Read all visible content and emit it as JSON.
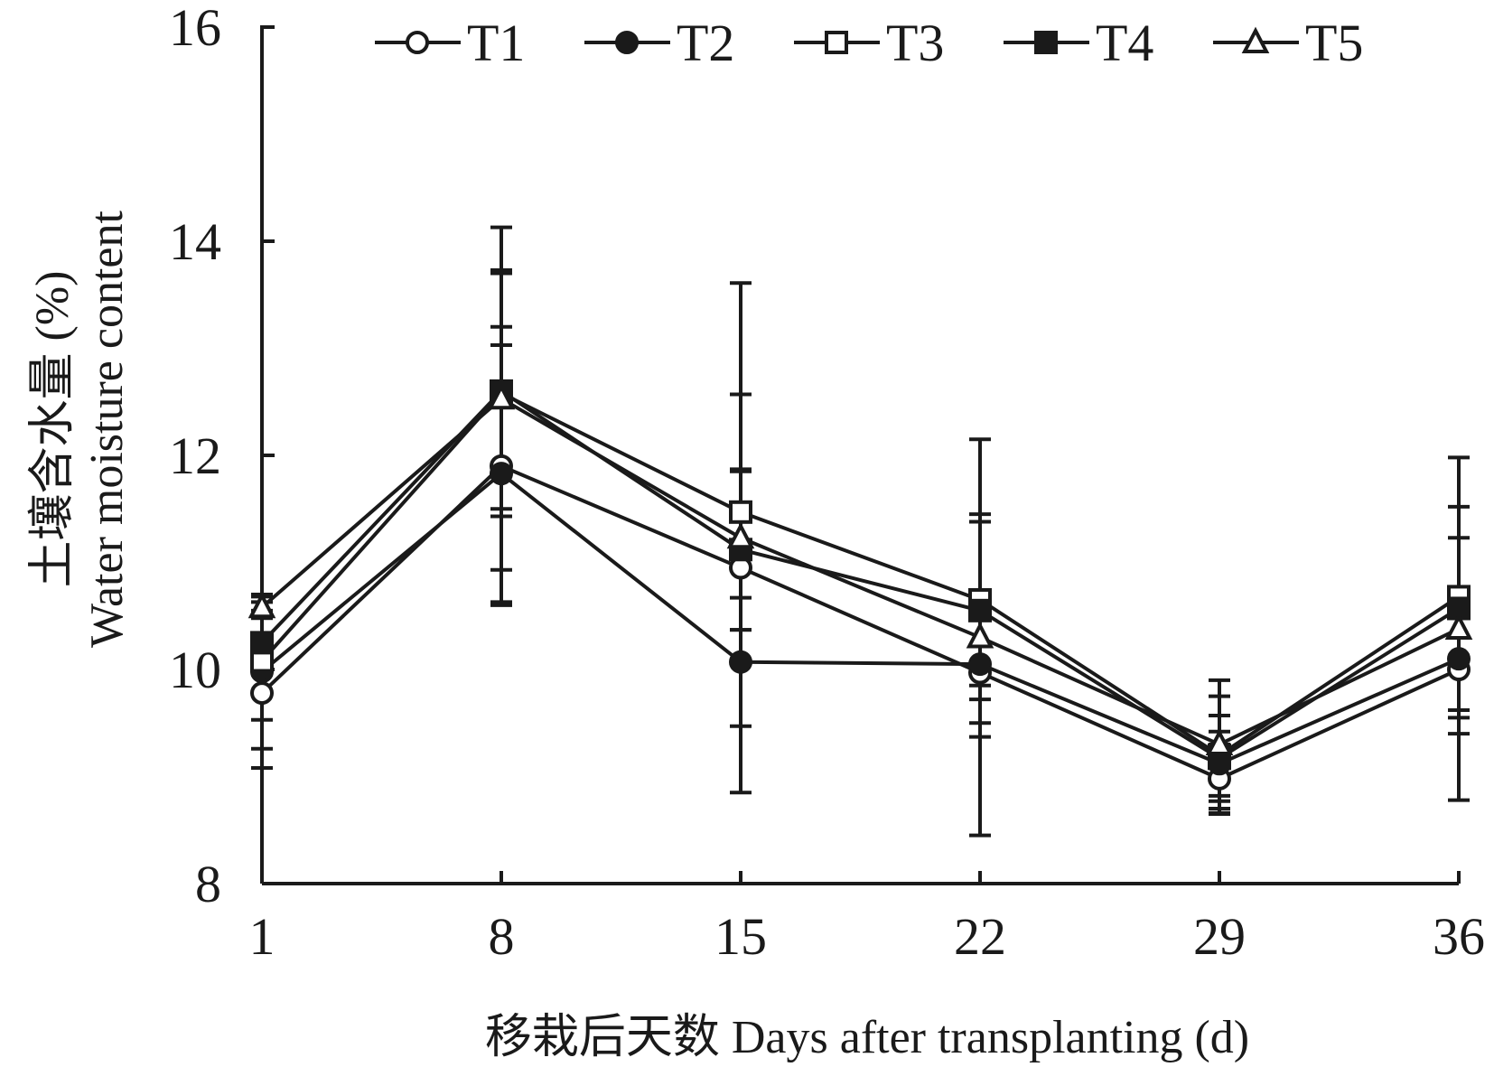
{
  "chart_data": {
    "type": "line",
    "x": [
      1,
      8,
      15,
      22,
      29,
      36
    ],
    "xlabel": "移栽后天数 Days after transplanting (d)",
    "ylabel_cn": "土壤含水量 (%)",
    "ylabel_en": "Water moisture content",
    "ylim": [
      8,
      16
    ],
    "yticks": [
      8,
      10,
      12,
      14,
      16
    ],
    "xticks": [
      1,
      8,
      15,
      22,
      29,
      36
    ],
    "grid": false,
    "legend_position": "top",
    "series": [
      {
        "name": "T1",
        "marker": "circle-open",
        "values": [
          9.78,
          11.9,
          10.95,
          9.97,
          8.98,
          10.0
        ],
        "errors": [
          0.7,
          1.3,
          0.9,
          0.6,
          0.32,
          0.6
        ]
      },
      {
        "name": "T2",
        "marker": "circle-filled",
        "values": [
          9.98,
          11.83,
          10.07,
          10.05,
          9.12,
          10.1
        ],
        "errors": [
          0.72,
          1.2,
          0.6,
          0.55,
          0.3,
          0.55
        ]
      },
      {
        "name": "T3",
        "marker": "square-open",
        "values": [
          10.08,
          12.58,
          11.47,
          10.65,
          9.2,
          10.68
        ],
        "errors": [
          0.55,
          1.15,
          1.1,
          0.8,
          0.55,
          0.55
        ]
      },
      {
        "name": "T4",
        "marker": "square-filled",
        "values": [
          10.25,
          12.6,
          11.12,
          10.55,
          9.17,
          10.57
        ],
        "errors": [
          0.3,
          1.1,
          0.75,
          0.83,
          0.4,
          0.95
        ]
      },
      {
        "name": "T5",
        "marker": "triangle-open",
        "values": [
          10.58,
          12.53,
          11.23,
          10.3,
          9.3,
          10.38
        ],
        "errors": [
          0.1,
          1.6,
          2.38,
          1.85,
          0.6,
          1.6
        ]
      }
    ]
  }
}
